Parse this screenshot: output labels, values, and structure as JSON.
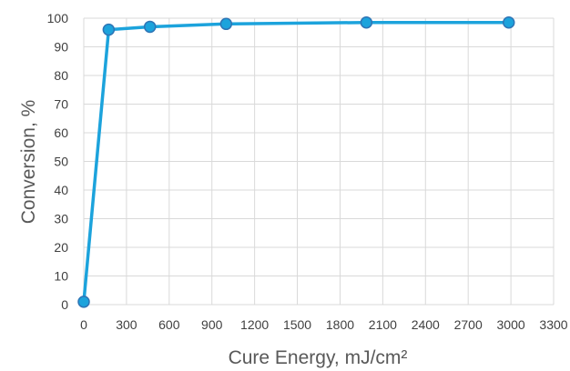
{
  "chart_data": {
    "type": "line",
    "title": "",
    "xlabel": "Cure Energy, mJ/cm²",
    "ylabel": "Conversion, %",
    "xlim": [
      0,
      3300
    ],
    "ylim": [
      0,
      100
    ],
    "x_ticks": [
      0,
      300,
      600,
      900,
      1200,
      1500,
      1800,
      2100,
      2400,
      2700,
      3000,
      3300
    ],
    "y_ticks": [
      0,
      10,
      20,
      30,
      40,
      50,
      60,
      70,
      80,
      90,
      100
    ],
    "grid": true,
    "legend": "none",
    "series": [
      {
        "x": [
          0,
          175,
          465,
          1000,
          1985,
          2985
        ],
        "y": [
          1,
          96,
          97,
          98,
          98.5,
          98.5
        ],
        "color": "#1ca3dc",
        "marker_color": "#2e75b6",
        "marker": "circle"
      }
    ]
  }
}
